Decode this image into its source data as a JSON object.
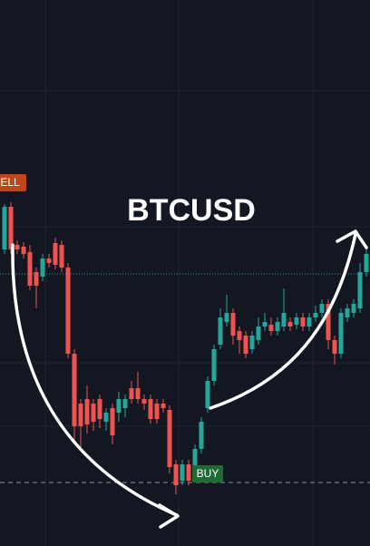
{
  "chart_data": {
    "type": "candlestick",
    "title": "BTCUSD",
    "annotations": [
      "SELL",
      "BUY"
    ],
    "up_color": "#26a69a",
    "down_color": "#ef5350",
    "ylim": [
      0,
      602
    ],
    "open": [
      327,
      374,
      332,
      330,
      324,
      302,
      297,
      317,
      334,
      332,
      307,
      212,
      157,
      162,
      157,
      162,
      137,
      152,
      147,
      152,
      174,
      174,
      162,
      162,
      157,
      157,
      150,
      90,
      72,
      90,
      82,
      107,
      152,
      182,
      222,
      247,
      257,
      237,
      232,
      217,
      227,
      242,
      244,
      237,
      242,
      247,
      244,
      252,
      242,
      252,
      257,
      267,
      227,
      212,
      252,
      257,
      262,
      302
    ],
    "high": [
      377,
      379,
      337,
      335,
      332,
      307,
      322,
      322,
      340,
      337,
      312,
      217,
      162,
      177,
      162,
      167,
      152,
      157,
      170,
      167,
      182,
      192,
      167,
      167,
      162,
      162,
      155,
      95,
      95,
      95,
      112,
      142,
      187,
      222,
      262,
      277,
      262,
      242,
      237,
      237,
      252,
      257,
      252,
      252,
      284,
      252,
      257,
      257,
      257,
      265,
      272,
      272,
      232,
      262,
      267,
      272,
      312,
      332
    ],
    "low": [
      322,
      322,
      322,
      317,
      282,
      262,
      292,
      307,
      305,
      302,
      207,
      112,
      107,
      124,
      127,
      130,
      127,
      112,
      137,
      142,
      157,
      157,
      150,
      135,
      135,
      147,
      80,
      57,
      67,
      67,
      77,
      102,
      147,
      177,
      217,
      242,
      222,
      212,
      207,
      212,
      222,
      237,
      232,
      232,
      237,
      237,
      239,
      237,
      237,
      247,
      252,
      217,
      200,
      207,
      247,
      252,
      257,
      297
    ],
    "close": [
      374,
      327,
      327,
      322,
      287,
      287,
      317,
      312,
      310,
      307,
      212,
      132,
      132,
      134,
      137,
      140,
      147,
      122,
      162,
      162,
      162,
      162,
      157,
      140,
      140,
      152,
      87,
      67,
      90,
      72,
      107,
      137,
      182,
      217,
      252,
      257,
      232,
      227,
      212,
      232,
      242,
      247,
      237,
      247,
      257,
      242,
      252,
      242,
      252,
      257,
      267,
      227,
      212,
      257,
      262,
      267,
      302,
      322
    ]
  }
}
